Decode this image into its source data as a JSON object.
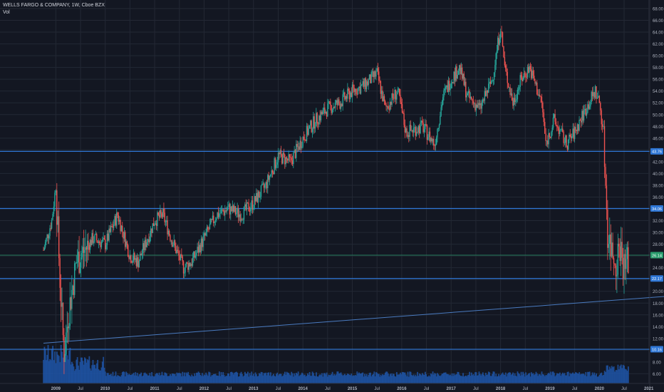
{
  "legend": {
    "title": "WELLS FARGO & COMPANY, 1W, Cboe BZX",
    "volume_label": "Vol"
  },
  "colors": {
    "background": "#131722",
    "grid": "#232834",
    "up": "#26a69a",
    "down": "#ef5350",
    "volume": "#1e53a5",
    "hline": "#2f77d6",
    "last_price": "#2a9d6e",
    "trendline": "#4a7bc0",
    "axis_text": "#aeb3bf"
  },
  "chart_data": {
    "type": "candlestick",
    "title": "WELLS FARGO & COMPANY, 1W, Cboe BZX",
    "xlabel": "",
    "ylabel": "",
    "grid": true,
    "ylim": [
      4.5,
      69.5
    ],
    "y_ticks": [
      6,
      8,
      10,
      12,
      14,
      16,
      18,
      20,
      22,
      24,
      26,
      28,
      30,
      32,
      34,
      36,
      38,
      40,
      42,
      44,
      46,
      48,
      50,
      52,
      54,
      56,
      58,
      60,
      62,
      64,
      66,
      68
    ],
    "x_ticks": [
      "2009",
      "Jul",
      "2010",
      "Jul",
      "2011",
      "Jul",
      "2012",
      "Jul",
      "2013",
      "Jul",
      "2014",
      "Jul",
      "2015",
      "Jul",
      "2016",
      "Jul",
      "2017",
      "Jul",
      "2018",
      "Jul",
      "2019",
      "Jul",
      "2020",
      "Jul",
      "2021",
      "Jul"
    ],
    "horizontal_levels": [
      {
        "value": 43.76,
        "label": "43.76"
      },
      {
        "value": 34.06,
        "label": "34.06"
      },
      {
        "value": 22.17,
        "label": "22.17"
      },
      {
        "value": 10.16,
        "label": "10.16"
      }
    ],
    "last_price": {
      "value": 26.14,
      "label": "26.14"
    },
    "trendline": {
      "from": {
        "x": "2008-10",
        "y": 11.2
      },
      "to": {
        "x": "2021-10",
        "y": 19.4
      }
    },
    "price_path": [
      [
        "2008-10",
        27
      ],
      [
        "2008-12",
        32
      ],
      [
        "2009-01",
        38
      ],
      [
        "2009-02",
        22
      ],
      [
        "2009-03",
        9
      ],
      [
        "2009-04",
        16
      ],
      [
        "2009-06",
        25
      ],
      [
        "2009-08",
        27
      ],
      [
        "2009-10",
        29
      ],
      [
        "2010-01",
        28
      ],
      [
        "2010-04",
        33
      ],
      [
        "2010-07",
        26
      ],
      [
        "2010-09",
        25
      ],
      [
        "2011-01",
        32
      ],
      [
        "2011-03",
        33
      ],
      [
        "2011-05",
        29
      ],
      [
        "2011-08",
        24
      ],
      [
        "2011-10",
        25
      ],
      [
        "2012-01",
        29
      ],
      [
        "2012-04",
        33
      ],
      [
        "2012-07",
        34
      ],
      [
        "2012-10",
        33
      ],
      [
        "2013-01",
        35
      ],
      [
        "2013-04",
        38
      ],
      [
        "2013-07",
        43
      ],
      [
        "2013-10",
        42
      ],
      [
        "2014-01",
        46
      ],
      [
        "2014-04",
        49
      ],
      [
        "2014-07",
        51
      ],
      [
        "2014-10",
        52
      ],
      [
        "2015-01",
        54
      ],
      [
        "2015-04",
        55
      ],
      [
        "2015-07",
        57
      ],
      [
        "2015-09",
        51
      ],
      [
        "2015-12",
        54
      ],
      [
        "2016-02",
        47
      ],
      [
        "2016-06",
        48
      ],
      [
        "2016-09",
        45
      ],
      [
        "2016-11",
        53
      ],
      [
        "2017-01",
        56
      ],
      [
        "2017-03",
        58
      ],
      [
        "2017-05",
        53
      ],
      [
        "2017-08",
        51
      ],
      [
        "2017-11",
        56
      ],
      [
        "2018-01",
        65
      ],
      [
        "2018-02",
        58
      ],
      [
        "2018-04",
        52
      ],
      [
        "2018-06",
        56
      ],
      [
        "2018-08",
        58
      ],
      [
        "2018-11",
        52
      ],
      [
        "2018-12",
        45
      ],
      [
        "2019-02",
        49
      ],
      [
        "2019-05",
        45
      ],
      [
        "2019-07",
        47
      ],
      [
        "2019-09",
        50
      ],
      [
        "2019-12",
        54
      ],
      [
        "2020-01",
        52
      ],
      [
        "2020-02",
        47
      ],
      [
        "2020-03",
        30
      ],
      [
        "2020-04",
        27
      ],
      [
        "2020-05",
        25
      ],
      [
        "2020-06",
        28
      ],
      [
        "2020-07",
        24
      ],
      [
        "2020-08",
        25.5
      ]
    ],
    "volume_profile_range": [
      5.5,
      11
    ]
  }
}
